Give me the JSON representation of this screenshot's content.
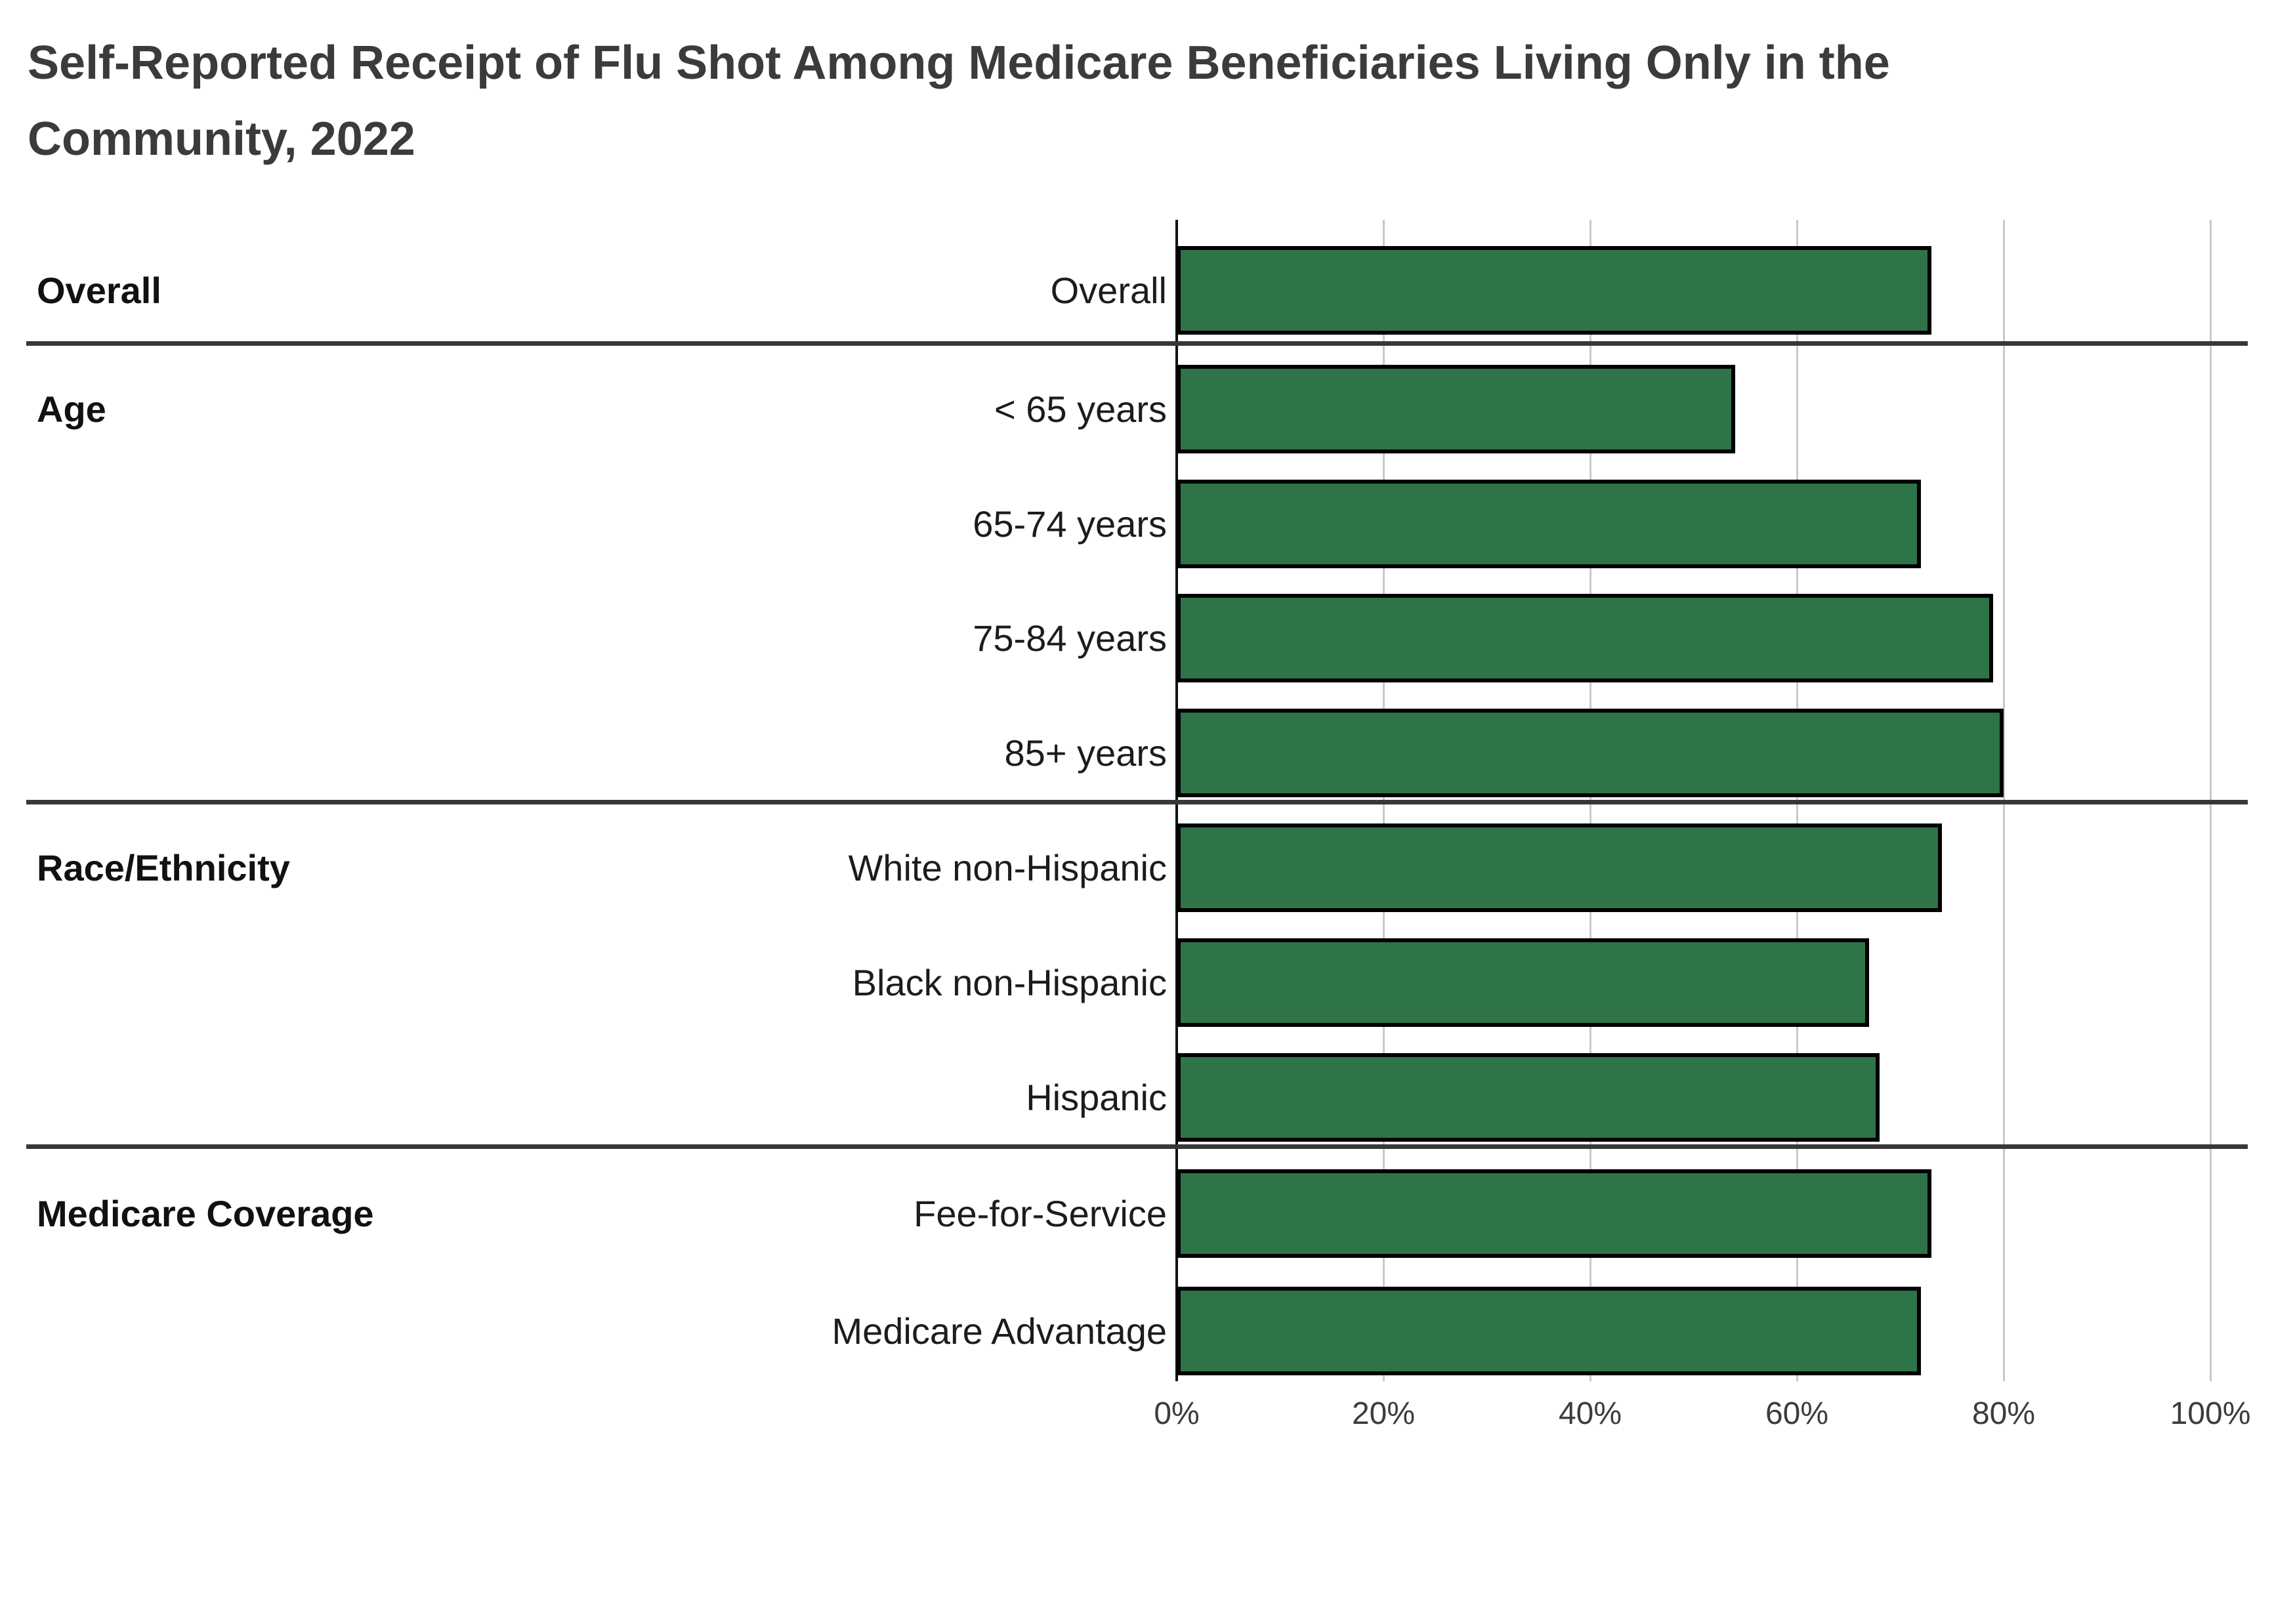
{
  "title": {
    "line1": "Self-Reported Receipt of Flu Shot Among Medicare Beneficiaries Living Only in the",
    "line2": "Community, 2022"
  },
  "chart_data": {
    "type": "bar",
    "orientation": "horizontal",
    "title": "Self-Reported Receipt of Flu Shot Among Medicare Beneficiaries Living Only in the Community, 2022",
    "xlabel": "",
    "ylabel": "",
    "xlim": [
      0,
      100
    ],
    "x_ticks": [
      "0%",
      "20%",
      "40%",
      "60%",
      "80%",
      "100%"
    ],
    "grid": "vertical-gridlines-every-20pct",
    "legend_position": "none",
    "value_unit": "%",
    "bar_color": "#2F7349",
    "bar_border_color": "#000000",
    "groups": [
      {
        "label": "Overall",
        "rows": [
          {
            "label": "Overall",
            "value": 73
          }
        ]
      },
      {
        "label": "Age",
        "rows": [
          {
            "label": "< 65 years",
            "value": 54
          },
          {
            "label": "65-74 years",
            "value": 72
          },
          {
            "label": "75-84 years",
            "value": 79
          },
          {
            "label": "85+ years",
            "value": 80
          }
        ]
      },
      {
        "label": "Race/Ethnicity",
        "rows": [
          {
            "label": "White non-Hispanic",
            "value": 74
          },
          {
            "label": "Black non-Hispanic",
            "value": 67
          },
          {
            "label": "Hispanic",
            "value": 68
          }
        ]
      },
      {
        "label": "Medicare Coverage",
        "rows": [
          {
            "label": "Fee-for-Service",
            "value": 73
          },
          {
            "label": "Medicare Advantage",
            "value": 72
          }
        ]
      }
    ]
  }
}
